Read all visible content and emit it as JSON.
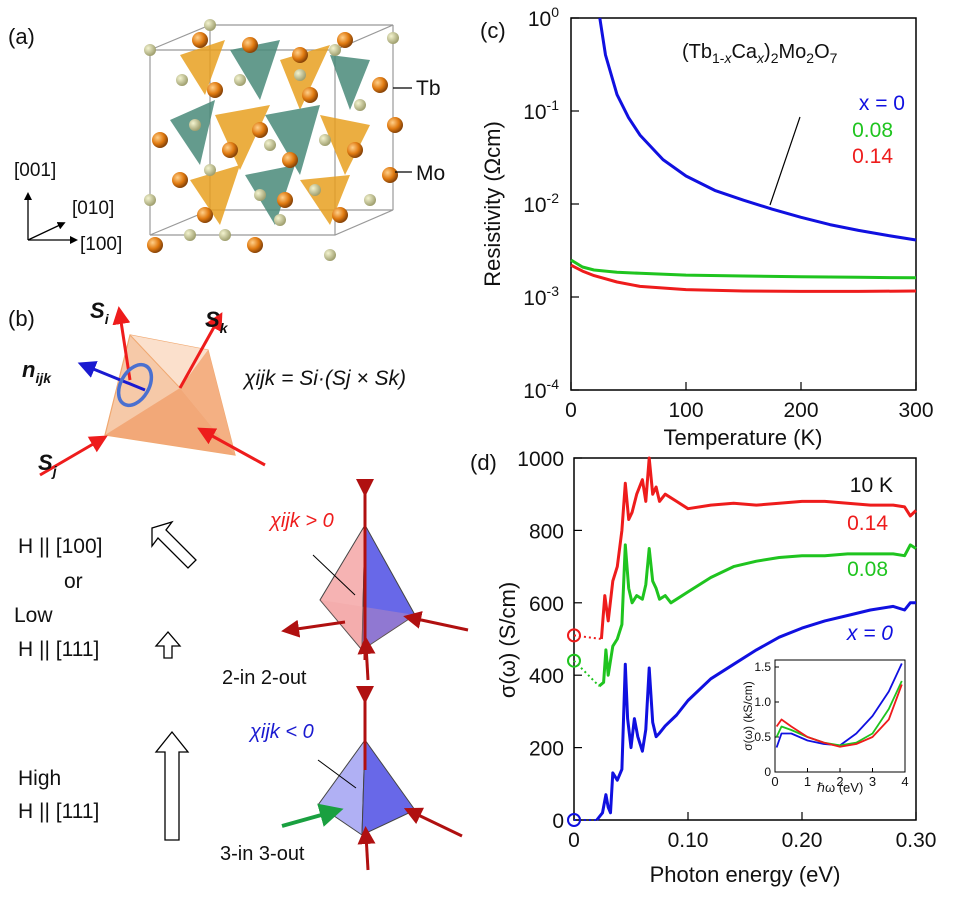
{
  "panels": {
    "a": {
      "label": "(a)",
      "tb_label": "Tb",
      "mo_label": "Mo",
      "axis_001": "[001]",
      "axis_010": "[010]",
      "axis_100": "[100]"
    },
    "b": {
      "label": "(b)",
      "si": "S",
      "si_sub": "i",
      "sk": "S",
      "sk_sub": "k",
      "sj": "S",
      "sj_sub": "j",
      "n": "n",
      "n_sub": "ijk",
      "formula": "χijk = Si·(Sj × Sk)",
      "low_field_line1": "H || [100]",
      "low_field_line2": "or",
      "low_field_line3": "Low",
      "low_field_line4": "H || [111]",
      "chi_pos": "χijk > 0",
      "chi_neg": "χijk < 0",
      "config_2in": "2-in 2-out",
      "config_3in": "3-in 3-out",
      "high_line1": "High",
      "high_line2": "H || [111]"
    },
    "c": {
      "label": "(c)",
      "compound": "(Tb1-xCax)2Mo2O7",
      "legend_x0": "x = 0",
      "legend_008": "0.08",
      "legend_014": "0.14"
    },
    "d": {
      "label": "(d)",
      "temp": "10 K",
      "lab_014": "0.14",
      "lab_008": "0.08",
      "lab_x0": "x = 0",
      "inset_xlabel": "ℏω (eV)",
      "inset_ylabel": "σ(ω) (kS/cm)"
    }
  },
  "colors": {
    "x0": "#1010e0",
    "x008": "#1fc41f",
    "x014": "#ee1c1c",
    "tb": "#e07a10",
    "mo": "#4a8a7a",
    "mo_label": "#4a7a2a",
    "tb_label": "#c86a10"
  },
  "chart_data": [
    {
      "type": "line",
      "xlabel": "Temperature (K)",
      "ylabel": "Resistivity (Ωcm)",
      "xlim": [
        0,
        300
      ],
      "ylim": [
        0.0001,
        1
      ],
      "yscale": "log",
      "xticks": [
        "0",
        "100",
        "200",
        "300"
      ],
      "yticks": [
        "10-4",
        "10-3",
        "10-2",
        "10-1",
        "100"
      ],
      "series": [
        {
          "name": "x = 0",
          "color": "#1010e0",
          "x": [
            25,
            30,
            40,
            50,
            60,
            80,
            100,
            125,
            150,
            175,
            200,
            225,
            250,
            275,
            300
          ],
          "y": [
            1.0,
            0.4,
            0.15,
            0.085,
            0.055,
            0.03,
            0.02,
            0.014,
            0.011,
            0.0088,
            0.0072,
            0.006,
            0.0052,
            0.0046,
            0.0041
          ]
        },
        {
          "name": "0.08",
          "color": "#1fc41f",
          "x": [
            0,
            10,
            20,
            40,
            60,
            100,
            150,
            200,
            250,
            300
          ],
          "y": [
            0.0025,
            0.0021,
            0.00195,
            0.00185,
            0.0018,
            0.00172,
            0.00168,
            0.00165,
            0.00163,
            0.00161
          ]
        },
        {
          "name": "0.14",
          "color": "#ee1c1c",
          "x": [
            0,
            10,
            20,
            40,
            60,
            100,
            150,
            200,
            250,
            300
          ],
          "y": [
            0.0022,
            0.0019,
            0.0017,
            0.00145,
            0.0013,
            0.0012,
            0.00116,
            0.00115,
            0.00115,
            0.00116
          ]
        }
      ]
    },
    {
      "type": "line",
      "xlabel": "Photon energy (eV)",
      "ylabel": "σ(ω) (S/cm)",
      "xlim": [
        0,
        0.3
      ],
      "ylim": [
        0,
        1000
      ],
      "xticks": [
        "0",
        "0.10",
        "0.20",
        "0.30"
      ],
      "yticks": [
        "0",
        "200",
        "400",
        "600",
        "800",
        "1000"
      ],
      "series": [
        {
          "name": "x = 0",
          "color": "#1010e0",
          "dc_value": 0,
          "x": [
            0.02,
            0.025,
            0.028,
            0.03,
            0.032,
            0.034,
            0.038,
            0.042,
            0.045,
            0.047,
            0.05,
            0.053,
            0.056,
            0.06,
            0.063,
            0.066,
            0.069,
            0.072,
            0.075,
            0.08,
            0.09,
            0.1,
            0.12,
            0.14,
            0.16,
            0.18,
            0.2,
            0.22,
            0.24,
            0.26,
            0.28,
            0.29,
            0.295,
            0.3
          ],
          "y": [
            0,
            20,
            70,
            35,
            20,
            130,
            110,
            140,
            430,
            280,
            200,
            280,
            230,
            190,
            250,
            420,
            270,
            230,
            240,
            260,
            290,
            330,
            390,
            430,
            470,
            505,
            530,
            550,
            565,
            580,
            590,
            580,
            600,
            600
          ]
        },
        {
          "name": "0.08",
          "color": "#1fc41f",
          "dc_value": 440,
          "x": [
            0.022,
            0.026,
            0.028,
            0.03,
            0.034,
            0.038,
            0.042,
            0.045,
            0.048,
            0.051,
            0.055,
            0.06,
            0.063,
            0.066,
            0.069,
            0.072,
            0.075,
            0.08,
            0.085,
            0.09,
            0.1,
            0.12,
            0.14,
            0.16,
            0.18,
            0.2,
            0.22,
            0.24,
            0.26,
            0.28,
            0.29,
            0.295,
            0.3
          ],
          "y": [
            370,
            380,
            470,
            400,
            480,
            500,
            540,
            760,
            640,
            600,
            620,
            610,
            650,
            750,
            660,
            640,
            610,
            620,
            600,
            610,
            630,
            670,
            700,
            715,
            725,
            730,
            730,
            735,
            735,
            735,
            730,
            760,
            750
          ]
        },
        {
          "name": "0.14",
          "color": "#ee1c1c",
          "dc_value": 510,
          "x": [
            0.024,
            0.027,
            0.03,
            0.034,
            0.038,
            0.042,
            0.045,
            0.048,
            0.051,
            0.055,
            0.06,
            0.063,
            0.066,
            0.069,
            0.072,
            0.075,
            0.08,
            0.09,
            0.1,
            0.12,
            0.14,
            0.16,
            0.18,
            0.2,
            0.22,
            0.24,
            0.26,
            0.28,
            0.29,
            0.295,
            0.3
          ],
          "y": [
            500,
            620,
            550,
            660,
            700,
            800,
            930,
            830,
            850,
            900,
            940,
            880,
            1000,
            900,
            920,
            880,
            900,
            880,
            860,
            870,
            875,
            870,
            875,
            880,
            880,
            875,
            870,
            870,
            865,
            840,
            855
          ]
        }
      ]
    },
    {
      "type": "line",
      "xlabel": "ℏω (eV)",
      "ylabel": "σ(ω) (kS/cm)",
      "xlim": [
        0,
        4
      ],
      "ylim": [
        0,
        1.6
      ],
      "xticks": [
        "0",
        "1",
        "2",
        "3",
        "4"
      ],
      "yticks": [
        "0",
        "0.5",
        "1.0",
        "1.5"
      ],
      "series": [
        {
          "name": "x = 0",
          "color": "#1010e0",
          "x": [
            0.05,
            0.2,
            0.5,
            1.0,
            1.5,
            2.0,
            2.5,
            3.0,
            3.5,
            3.9
          ],
          "y": [
            0.35,
            0.55,
            0.55,
            0.45,
            0.4,
            0.38,
            0.55,
            0.8,
            1.15,
            1.55
          ]
        },
        {
          "name": "0.08",
          "color": "#1fc41f",
          "x": [
            0.05,
            0.2,
            0.5,
            1.0,
            1.5,
            2.0,
            2.5,
            3.0,
            3.5,
            3.9
          ],
          "y": [
            0.5,
            0.65,
            0.6,
            0.5,
            0.42,
            0.38,
            0.42,
            0.55,
            0.9,
            1.3
          ]
        },
        {
          "name": "0.14",
          "color": "#ee1c1c",
          "x": [
            0.05,
            0.2,
            0.5,
            1.0,
            1.5,
            2.0,
            2.5,
            3.0,
            3.5,
            3.9
          ],
          "y": [
            0.65,
            0.75,
            0.65,
            0.5,
            0.42,
            0.36,
            0.4,
            0.5,
            0.75,
            1.25
          ]
        }
      ]
    }
  ]
}
